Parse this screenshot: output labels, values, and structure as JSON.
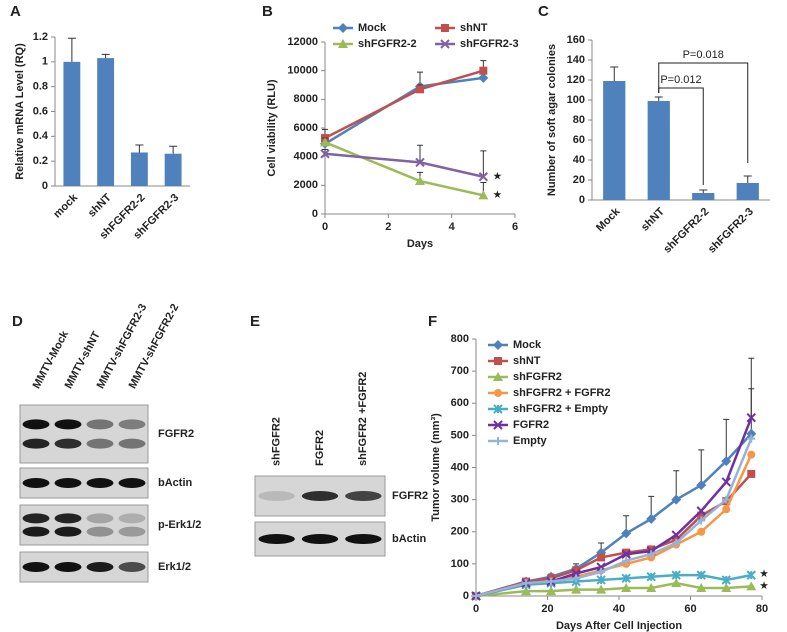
{
  "chart_data": [
    {
      "panel": "A",
      "type": "bar",
      "ylabel": "Relative mRNA Level (RQ)",
      "categories": [
        "mock",
        "shNT",
        "shFGFR2-2",
        "shFGFR2-3"
      ],
      "values": [
        1.0,
        1.03,
        0.27,
        0.26
      ],
      "errors": [
        0.19,
        0.03,
        0.06,
        0.06
      ],
      "color": "#4f81bd",
      "ylim": [
        0,
        1.2
      ],
      "yticks": [
        0,
        0.2,
        0.4,
        0.6,
        0.8,
        1,
        1.2
      ]
    },
    {
      "panel": "B",
      "type": "line",
      "xlabel": "Days",
      "ylabel": "Cell viability (RLU)",
      "x": [
        0,
        3,
        5
      ],
      "xlim": [
        0,
        6
      ],
      "xticks": [
        0,
        2,
        4,
        6
      ],
      "ylim": [
        0,
        12000
      ],
      "yticks": [
        0,
        2000,
        4000,
        6000,
        8000,
        10000,
        12000
      ],
      "series": [
        {
          "name": "Mock",
          "color": "#4f81bd",
          "marker": "diamond",
          "values": [
            4900,
            8900,
            9500
          ],
          "errors": [
            600,
            1000,
            400
          ]
        },
        {
          "name": "shNT",
          "color": "#c0504d",
          "marker": "square",
          "values": [
            5300,
            8700,
            10000
          ],
          "errors": [
            600,
            300,
            700
          ]
        },
        {
          "name": "shFGFR2-2",
          "color": "#9bbb59",
          "marker": "triangle",
          "values": [
            5000,
            2300,
            1300
          ],
          "errors": [
            300,
            600,
            900
          ]
        },
        {
          "name": "shFGFR2-3",
          "color": "#8064a2",
          "marker": "x",
          "values": [
            4200,
            3600,
            2600
          ],
          "errors": [
            300,
            1200,
            1800
          ]
        }
      ],
      "annotations": [
        "★",
        "★"
      ]
    },
    {
      "panel": "C",
      "type": "bar",
      "ylabel": "Number of soft agar colonies",
      "categories": [
        "Mock",
        "shNT",
        "shFGFR2-2",
        "shFGFR2-3"
      ],
      "values": [
        119,
        99,
        7,
        17
      ],
      "errors": [
        14,
        4,
        3,
        7
      ],
      "color": "#4f81bd",
      "ylim": [
        0,
        160
      ],
      "yticks": [
        0,
        20,
        40,
        60,
        80,
        100,
        120,
        140,
        160
      ],
      "annotations": [
        "P=0.012",
        "P=0.018"
      ]
    },
    {
      "panel": "F",
      "type": "line",
      "xlabel": "Days After Cell Injection",
      "ylabel": "Tumor volume (mm³)",
      "x": [
        0,
        14,
        21,
        28,
        35,
        42,
        49,
        56,
        63,
        70,
        77
      ],
      "xlim": [
        0,
        80
      ],
      "xticks": [
        0,
        20,
        40,
        60,
        80
      ],
      "ylim": [
        0,
        800
      ],
      "yticks": [
        0,
        100,
        200,
        300,
        400,
        500,
        600,
        700,
        800
      ],
      "series": [
        {
          "name": "Mock",
          "color": "#4f81bd",
          "marker": "diamond",
          "values": [
            0,
            45,
            60,
            85,
            135,
            195,
            240,
            300,
            345,
            420,
            505
          ],
          "errors": [
            0,
            5,
            8,
            15,
            30,
            55,
            70,
            90,
            110,
            130,
            235
          ]
        },
        {
          "name": "shNT",
          "color": "#c0504d",
          "marker": "square",
          "values": [
            0,
            45,
            55,
            80,
            120,
            135,
            145,
            175,
            250,
            295,
            380
          ]
        },
        {
          "name": "shFGFR2",
          "color": "#9bbb59",
          "marker": "triangle",
          "values": [
            0,
            15,
            15,
            20,
            20,
            25,
            25,
            40,
            25,
            25,
            30
          ]
        },
        {
          "name": "shFGFR2 + FGFR2",
          "color": "#f79646",
          "marker": "circle",
          "values": [
            0,
            40,
            45,
            60,
            80,
            100,
            120,
            160,
            200,
            270,
            440
          ]
        },
        {
          "name": "shFGFR2 + Empty",
          "color": "#4bacc6",
          "marker": "star",
          "values": [
            0,
            35,
            40,
            45,
            50,
            55,
            60,
            65,
            65,
            50,
            65
          ]
        },
        {
          "name": "FGFR2",
          "color": "#7030a0",
          "marker": "x",
          "values": [
            0,
            40,
            45,
            70,
            90,
            130,
            140,
            190,
            265,
            355,
            555
          ],
          "errors": [
            null,
            null,
            null,
            null,
            null,
            null,
            null,
            null,
            null,
            null,
            90
          ]
        },
        {
          "name": "Empty",
          "color": "#95b3d7",
          "marker": "plus",
          "values": [
            0,
            40,
            45,
            55,
            75,
            110,
            130,
            165,
            235,
            300,
            490
          ]
        }
      ],
      "annotations": [
        "★",
        "★"
      ]
    }
  ],
  "blots": [
    {
      "panel": "D",
      "columns": [
        "MMTV-Mock",
        "MMTV-shNT",
        "MMTV-shFGFR2-3",
        "MMTV-shFGFR2-2"
      ],
      "rows": [
        "FGFR2",
        "bActin",
        "p-Erk1/2",
        "Erk1/2"
      ]
    },
    {
      "panel": "E",
      "columns": [
        "shFGFR2",
        "FGFR2",
        "shFGFR2 +FGFR2"
      ],
      "rows": [
        "FGFR2",
        "bActin"
      ]
    }
  ]
}
